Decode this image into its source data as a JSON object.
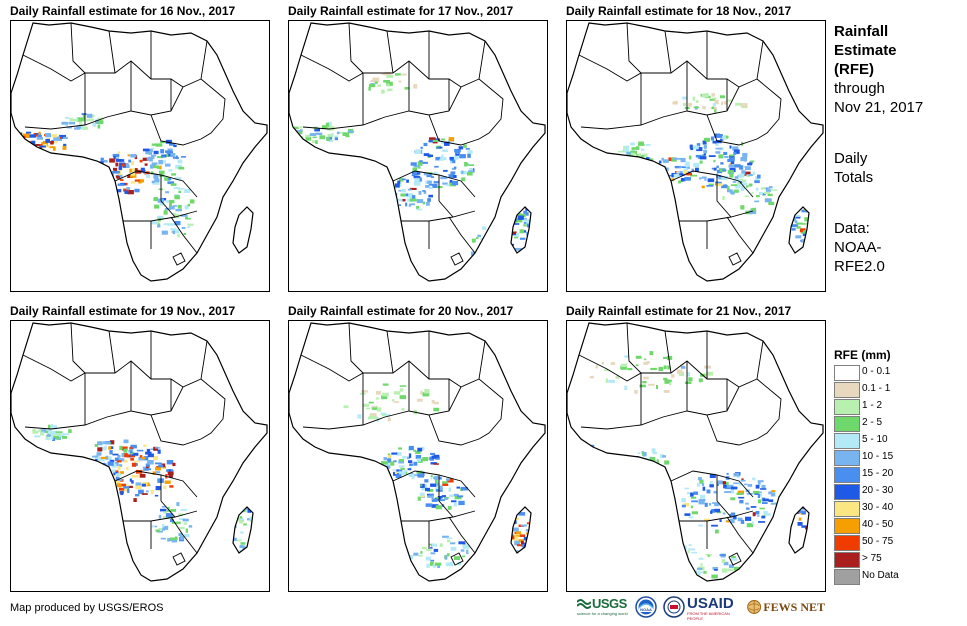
{
  "panels": [
    {
      "title": "Daily Rainfall estimate for 16 Nov., 2017"
    },
    {
      "title": "Daily Rainfall estimate for 17 Nov., 2017"
    },
    {
      "title": "Daily Rainfall estimate for 18 Nov., 2017"
    },
    {
      "title": "Daily Rainfall estimate for 19 Nov., 2017"
    },
    {
      "title": "Daily Rainfall estimate for 20 Nov., 2017"
    },
    {
      "title": "Daily Rainfall estimate for 21 Nov., 2017"
    }
  ],
  "side": {
    "heading_line1": "Rainfall",
    "heading_line2": "Estimate",
    "heading_line3": "(RFE)",
    "through_line1": "through",
    "through_line2": "Nov 21, 2017",
    "totals_line1": "Daily",
    "totals_line2": "Totals",
    "data_line1": "Data:",
    "data_line2": "NOAA-",
    "data_line3": "RFE2.0"
  },
  "legend": {
    "title": "RFE (mm)",
    "items": [
      {
        "label": "0 - 0.1",
        "color": "#ffffff"
      },
      {
        "label": "0.1 - 1",
        "color": "#e8d8be"
      },
      {
        "label": "1 - 2",
        "color": "#b8f0b0"
      },
      {
        "label": "2 - 5",
        "color": "#6ed86a"
      },
      {
        "label": "5 - 10",
        "color": "#b4eaf8"
      },
      {
        "label": "10 - 15",
        "color": "#78b4f0"
      },
      {
        "label": "15 - 20",
        "color": "#4a8ef0"
      },
      {
        "label": "20 - 30",
        "color": "#1e5ae6"
      },
      {
        "label": "30 - 40",
        "color": "#fae682"
      },
      {
        "label": "40 - 50",
        "color": "#f5a000"
      },
      {
        "label": "50 - 75",
        "color": "#f03c00"
      },
      {
        "label": "> 75",
        "color": "#aa1e1e"
      },
      {
        "label": "No Data",
        "color": "#a0a0a0"
      }
    ]
  },
  "credit": "Map produced by USGS/EROS",
  "logos": {
    "usgs": "USGS",
    "usgs_tagline": "science for a changing world",
    "noaa": "NOAA",
    "usaid": "USAID",
    "usaid_tagline": "FROM THE AMERICAN PEOPLE",
    "fews": "FEWS NET"
  }
}
